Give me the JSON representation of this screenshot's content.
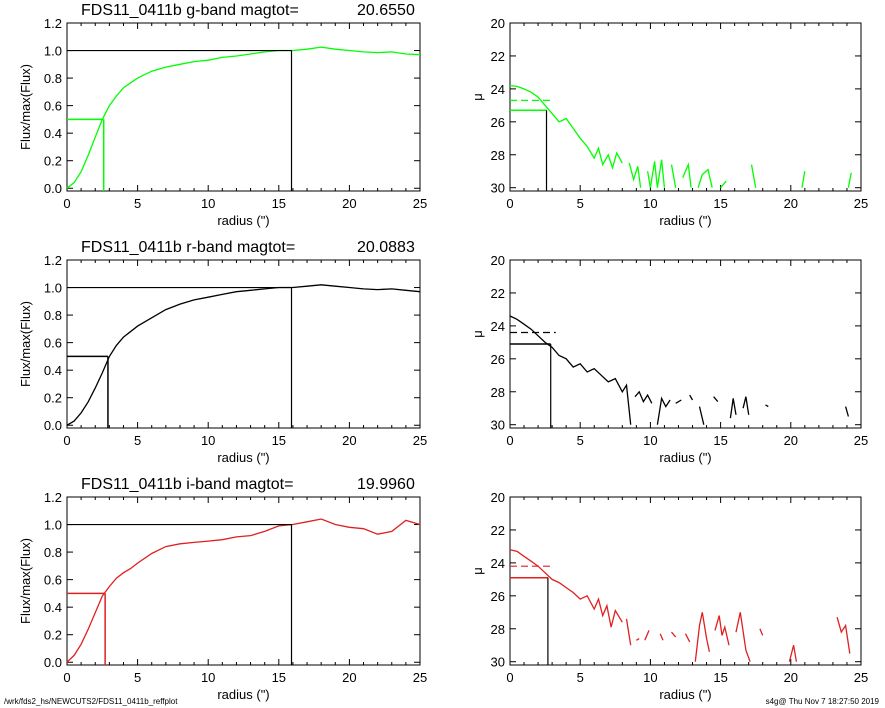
{
  "footer": {
    "left": "/wrk/fds2_hs/NEWCUTS2/FDS11_0411b_reffplot",
    "right": "s4g@  Thu Nov  7 18:27:50 2019"
  },
  "chart_data": [
    {
      "type": "line",
      "band": "g",
      "title": "FDS11_0411b g-band  magtot=",
      "magtot": "20.6550",
      "color": "#00ff00",
      "xlabel": "radius (\")",
      "ylabel": "Flux/max(Flux)",
      "xlim": [
        0,
        25
      ],
      "ylim": [
        -0.02,
        1.2
      ],
      "xticks": [
        "0",
        "5",
        "10",
        "15",
        "20",
        "25"
      ],
      "yticks": [
        "0.0",
        "0.2",
        "0.4",
        "0.6",
        "0.8",
        "1.0",
        "1.2"
      ],
      "r_half": 2.6,
      "r_total": 15.9,
      "x": [
        0,
        0.5,
        1,
        1.5,
        2,
        2.5,
        3,
        3.5,
        4,
        5,
        6,
        7,
        8,
        9,
        10,
        11,
        12,
        13,
        14,
        15,
        16,
        17,
        18,
        19,
        20,
        21,
        22,
        23,
        24,
        25
      ],
      "y": [
        0,
        0.04,
        0.12,
        0.24,
        0.37,
        0.5,
        0.6,
        0.67,
        0.73,
        0.8,
        0.85,
        0.88,
        0.9,
        0.92,
        0.93,
        0.95,
        0.96,
        0.975,
        0.99,
        1.0,
        1.0,
        1.01,
        1.025,
        1.01,
        1.0,
        0.99,
        0.985,
        0.99,
        0.975,
        0.97
      ]
    },
    {
      "type": "line",
      "band": "g",
      "title": "",
      "color": "#00ff00",
      "xlabel": "radius (\")",
      "ylabel": "μ",
      "xlim": [
        0,
        25
      ],
      "ylim": [
        30.2,
        20
      ],
      "xticks": [
        "0",
        "5",
        "10",
        "15",
        "20",
        "25"
      ],
      "yticks": [
        "20",
        "22",
        "24",
        "26",
        "28",
        "30"
      ],
      "r_half": 2.6,
      "mu_half": 25.3,
      "mu_dashed": 24.7,
      "segments": [
        [
          [
            0,
            23.8
          ],
          [
            0.5,
            23.85
          ],
          [
            1,
            24.0
          ],
          [
            1.5,
            24.2
          ],
          [
            2,
            24.5
          ],
          [
            2.5,
            25.0
          ],
          [
            3,
            25.5
          ],
          [
            3.5,
            26.0
          ],
          [
            4,
            25.8
          ],
          [
            4.5,
            26.4
          ],
          [
            5,
            27.0
          ],
          [
            5.5,
            27.5
          ],
          [
            6,
            28.2
          ],
          [
            6.3,
            27.6
          ],
          [
            6.6,
            28.6
          ],
          [
            7,
            28.0
          ],
          [
            7.3,
            28.8
          ],
          [
            7.6,
            27.9
          ],
          [
            8,
            28.5
          ]
        ],
        [
          [
            8.5,
            28.5
          ],
          [
            8.8,
            29.5
          ],
          [
            9.1,
            28.7
          ],
          [
            9.3,
            30.0
          ]
        ],
        [
          [
            9.8,
            29.0
          ],
          [
            10.0,
            30.0
          ],
          [
            10.3,
            28.4
          ],
          [
            10.5,
            30.0
          ],
          [
            10.8,
            28.3
          ],
          [
            11.0,
            30.0
          ]
        ],
        [
          [
            11.5,
            28.6
          ],
          [
            11.8,
            30.0
          ]
        ],
        [
          [
            12.3,
            29.4
          ],
          [
            12.7,
            28.6
          ],
          [
            12.9,
            30.0
          ]
        ],
        [
          [
            13.4,
            30.0
          ],
          [
            13.7,
            29.2
          ],
          [
            14.1,
            28.9
          ],
          [
            14.4,
            30.0
          ]
        ],
        [
          [
            15.0,
            30.0
          ],
          [
            15.4,
            29.6
          ]
        ],
        [
          [
            17.2,
            28.6
          ],
          [
            17.5,
            30.0
          ]
        ],
        [
          [
            20.8,
            30.0
          ],
          [
            21.0,
            29.0
          ]
        ],
        [
          [
            24.1,
            30.0
          ],
          [
            24.3,
            29.1
          ]
        ]
      ]
    },
    {
      "type": "line",
      "band": "r",
      "title": "FDS11_0411b r-band  magtot=",
      "magtot": "20.0883",
      "color": "#000000",
      "xlabel": "radius (\")",
      "ylabel": "Flux/max(Flux)",
      "xlim": [
        0,
        25
      ],
      "ylim": [
        -0.02,
        1.2
      ],
      "xticks": [
        "0",
        "5",
        "10",
        "15",
        "20",
        "25"
      ],
      "yticks": [
        "0.0",
        "0.2",
        "0.4",
        "0.6",
        "0.8",
        "1.0",
        "1.2"
      ],
      "r_half": 2.9,
      "r_total": 15.9,
      "x": [
        0,
        0.5,
        1,
        1.5,
        2,
        2.5,
        3,
        3.5,
        4,
        5,
        6,
        7,
        8,
        9,
        10,
        11,
        12,
        13,
        14,
        15,
        16,
        17,
        18,
        19,
        20,
        21,
        22,
        23,
        24,
        25
      ],
      "y": [
        0,
        0.03,
        0.09,
        0.17,
        0.27,
        0.38,
        0.5,
        0.58,
        0.64,
        0.72,
        0.78,
        0.84,
        0.88,
        0.91,
        0.93,
        0.95,
        0.97,
        0.98,
        0.99,
        1.0,
        1.0,
        1.01,
        1.02,
        1.01,
        1.0,
        0.99,
        0.985,
        0.99,
        0.98,
        0.97
      ]
    },
    {
      "type": "line",
      "band": "r",
      "title": "",
      "color": "#000000",
      "xlabel": "radius (\")",
      "ylabel": "μ",
      "xlim": [
        0,
        25
      ],
      "ylim": [
        30.2,
        20
      ],
      "xticks": [
        "0",
        "5",
        "10",
        "15",
        "20",
        "25"
      ],
      "yticks": [
        "20",
        "22",
        "24",
        "26",
        "28",
        "30"
      ],
      "r_half": 2.9,
      "mu_half": 25.1,
      "mu_dashed": 24.4,
      "segments": [
        [
          [
            0,
            23.4
          ],
          [
            0.5,
            23.6
          ],
          [
            1,
            23.9
          ],
          [
            1.5,
            24.2
          ],
          [
            2,
            24.6
          ],
          [
            2.5,
            25.0
          ],
          [
            3,
            25.3
          ],
          [
            3.5,
            25.8
          ],
          [
            4,
            26.0
          ],
          [
            4.5,
            26.5
          ],
          [
            5,
            26.3
          ],
          [
            5.5,
            26.8
          ],
          [
            6,
            26.6
          ],
          [
            6.5,
            27.0
          ],
          [
            7,
            27.4
          ],
          [
            7.5,
            27.2
          ],
          [
            8,
            28.0
          ],
          [
            8.3,
            27.6
          ],
          [
            8.6,
            30.0
          ]
        ],
        [
          [
            8.9,
            28.3
          ],
          [
            9.2,
            28.0
          ],
          [
            9.5,
            28.6
          ],
          [
            9.8,
            28.2
          ],
          [
            10.1,
            28.7
          ]
        ],
        [
          [
            10.5,
            30.0
          ],
          [
            10.8,
            28.4
          ],
          [
            11.1,
            28.9
          ],
          [
            11.4,
            28.5
          ]
        ],
        [
          [
            11.8,
            28.7
          ],
          [
            12.2,
            28.5
          ]
        ],
        [
          [
            12.8,
            28.2
          ],
          [
            13.0,
            28.5
          ]
        ],
        [
          [
            13.5,
            28.9
          ],
          [
            13.8,
            30.0
          ]
        ],
        [
          [
            14.5,
            28.3
          ],
          [
            14.8,
            28.6
          ]
        ],
        [
          [
            15.7,
            29.6
          ],
          [
            15.9,
            28.4
          ],
          [
            16.1,
            29.4
          ]
        ],
        [
          [
            16.6,
            29.0
          ],
          [
            16.8,
            28.3
          ],
          [
            17.0,
            29.4
          ]
        ],
        [
          [
            18.2,
            28.8
          ],
          [
            18.4,
            28.9
          ]
        ],
        [
          [
            23.9,
            28.9
          ],
          [
            24.1,
            29.5
          ]
        ]
      ]
    },
    {
      "type": "line",
      "band": "i",
      "title": "FDS11_0411b i-band  magtot=",
      "magtot": "19.9960",
      "color": "#e02020",
      "xlabel": "radius (\")",
      "ylabel": "Flux/max(Flux)",
      "xlim": [
        0,
        25
      ],
      "ylim": [
        -0.02,
        1.2
      ],
      "xticks": [
        "0",
        "5",
        "10",
        "15",
        "20",
        "25"
      ],
      "yticks": [
        "0.0",
        "0.2",
        "0.4",
        "0.6",
        "0.8",
        "1.0",
        "1.2"
      ],
      "r_half": 2.7,
      "r_total": 15.9,
      "x": [
        0,
        0.5,
        1,
        1.5,
        2,
        2.5,
        3,
        3.5,
        4,
        4.5,
        5,
        6,
        7,
        8,
        9,
        10,
        11,
        12,
        13,
        14,
        15,
        16,
        17,
        18,
        19,
        20,
        21,
        22,
        23,
        24,
        25
      ],
      "y": [
        0,
        0.05,
        0.13,
        0.24,
        0.36,
        0.48,
        0.55,
        0.61,
        0.65,
        0.68,
        0.72,
        0.79,
        0.84,
        0.86,
        0.87,
        0.88,
        0.89,
        0.91,
        0.92,
        0.95,
        0.99,
        1.0,
        1.02,
        1.04,
        1.0,
        0.98,
        0.97,
        0.93,
        0.95,
        1.03,
        1.0
      ]
    },
    {
      "type": "line",
      "band": "i",
      "title": "",
      "color": "#e02020",
      "xlabel": "radius (\")",
      "ylabel": "μ",
      "xlim": [
        0,
        25
      ],
      "ylim": [
        30.2,
        20
      ],
      "xticks": [
        "0",
        "5",
        "10",
        "15",
        "20",
        "25"
      ],
      "yticks": [
        "20",
        "22",
        "24",
        "26",
        "28",
        "30"
      ],
      "r_half": 2.7,
      "mu_half": 24.9,
      "mu_dashed": 24.2,
      "segments": [
        [
          [
            0,
            23.2
          ],
          [
            0.5,
            23.3
          ],
          [
            1,
            23.6
          ],
          [
            1.5,
            23.9
          ],
          [
            2,
            24.2
          ],
          [
            2.5,
            24.6
          ],
          [
            3,
            25.0
          ],
          [
            3.5,
            25.2
          ],
          [
            4,
            25.5
          ],
          [
            4.5,
            25.8
          ],
          [
            5,
            26.2
          ],
          [
            5.5,
            26.0
          ],
          [
            6,
            26.8
          ],
          [
            6.3,
            26.2
          ],
          [
            6.6,
            27.2
          ],
          [
            6.9,
            26.6
          ],
          [
            7.2,
            27.9
          ],
          [
            7.5,
            26.9
          ],
          [
            8,
            27.6
          ]
        ],
        [
          [
            8.3,
            27.4
          ],
          [
            8.6,
            29.0
          ]
        ],
        [
          [
            9.0,
            28.7
          ],
          [
            9.2,
            28.6
          ]
        ],
        [
          [
            9.6,
            28.7
          ],
          [
            9.9,
            28.1
          ]
        ],
        [
          [
            10.7,
            28.3
          ],
          [
            10.9,
            28.7
          ]
        ],
        [
          [
            11.5,
            28.2
          ],
          [
            11.8,
            28.5
          ]
        ],
        [
          [
            12.5,
            28.3
          ],
          [
            12.8,
            28.8
          ]
        ],
        [
          [
            13.2,
            30.0
          ],
          [
            13.5,
            27.8
          ],
          [
            13.7,
            27.0
          ],
          [
            14.0,
            28.6
          ],
          [
            14.2,
            29.4
          ]
        ],
        [
          [
            14.6,
            28.1
          ],
          [
            14.9,
            27.2
          ],
          [
            15.1,
            28.4
          ],
          [
            15.3,
            27.9
          ],
          [
            15.6,
            29.0
          ]
        ],
        [
          [
            16.1,
            28.2
          ],
          [
            16.4,
            27.0
          ],
          [
            16.8,
            29.3
          ],
          [
            17.1,
            30.0
          ]
        ],
        [
          [
            17.8,
            28.0
          ],
          [
            18.0,
            28.4
          ]
        ],
        [
          [
            19.9,
            30.0
          ],
          [
            20.2,
            29.0
          ],
          [
            20.4,
            30.0
          ]
        ],
        [
          [
            23.3,
            27.3
          ],
          [
            23.6,
            28.2
          ],
          [
            23.9,
            27.8
          ],
          [
            24.2,
            29.5
          ]
        ]
      ]
    }
  ]
}
